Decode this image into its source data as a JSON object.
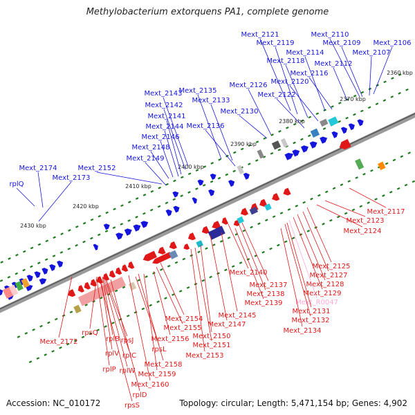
{
  "title": "Methylobacterium extorquens PA1, complete genome",
  "footer": {
    "accession": "Accession: NC_010172",
    "summary": "Topology: circular; Length: 5,471,154 bp; Genes: 4,902"
  },
  "colors": {
    "forward": "#1414dc",
    "reverse": "#e01818",
    "highlight": "#ffaad8",
    "tick": "#1e7a1e"
  },
  "ticks": [
    "2360 kbp",
    "2370 kbp",
    "2380 kbp",
    "2390 kbp",
    "2400 kbp",
    "2410 kbp",
    "2420 kbp",
    "2430 kbp"
  ],
  "forward_labels": [
    "Mext_2121",
    "Mext_2110",
    "Mext_2119",
    "Mext_2109",
    "Mext_2106",
    "Mext_2114",
    "Mext_2107",
    "Mext_2118",
    "Mext_2112",
    "Mext_2116",
    "Mext_2126",
    "Mext_2120",
    "Mext_2135",
    "Mext_2143",
    "Mext_2122",
    "Mext_2133",
    "Mext_2142",
    "Mext_2130",
    "Mext_2141",
    "Mext_2136",
    "Mext_2144",
    "Mext_2146",
    "Mext_2148",
    "Mext_2149",
    "Mext_2174",
    "Mext_2152",
    "Mext_2173",
    "rplQ"
  ],
  "reverse_labels": [
    "Mext_2117",
    "Mext_2123",
    "Mext_2124",
    "Mext_2125",
    "Mext_2127",
    "Mext_2140",
    "Mext_2128",
    "Mext_2137",
    "Mext_2129",
    "Mext_2138",
    "Mext_2139",
    "Mext_R0047",
    "Mext_2131",
    "Mext_2145",
    "Mext_2132",
    "Mext_2154",
    "Mext_2147",
    "Mext_2155",
    "Mext_2134",
    "Mext_2150",
    "Mext_2156",
    "Mext_2151",
    "Mext_2172",
    "rpsQ",
    "rplB",
    "rpsJ",
    "rpsL",
    "Mext_2153",
    "rplV",
    "rplC",
    "Mext_2158",
    "rplP",
    "rplW",
    "Mext_2159",
    "Mext_2160",
    "rplD",
    "rpsS"
  ]
}
